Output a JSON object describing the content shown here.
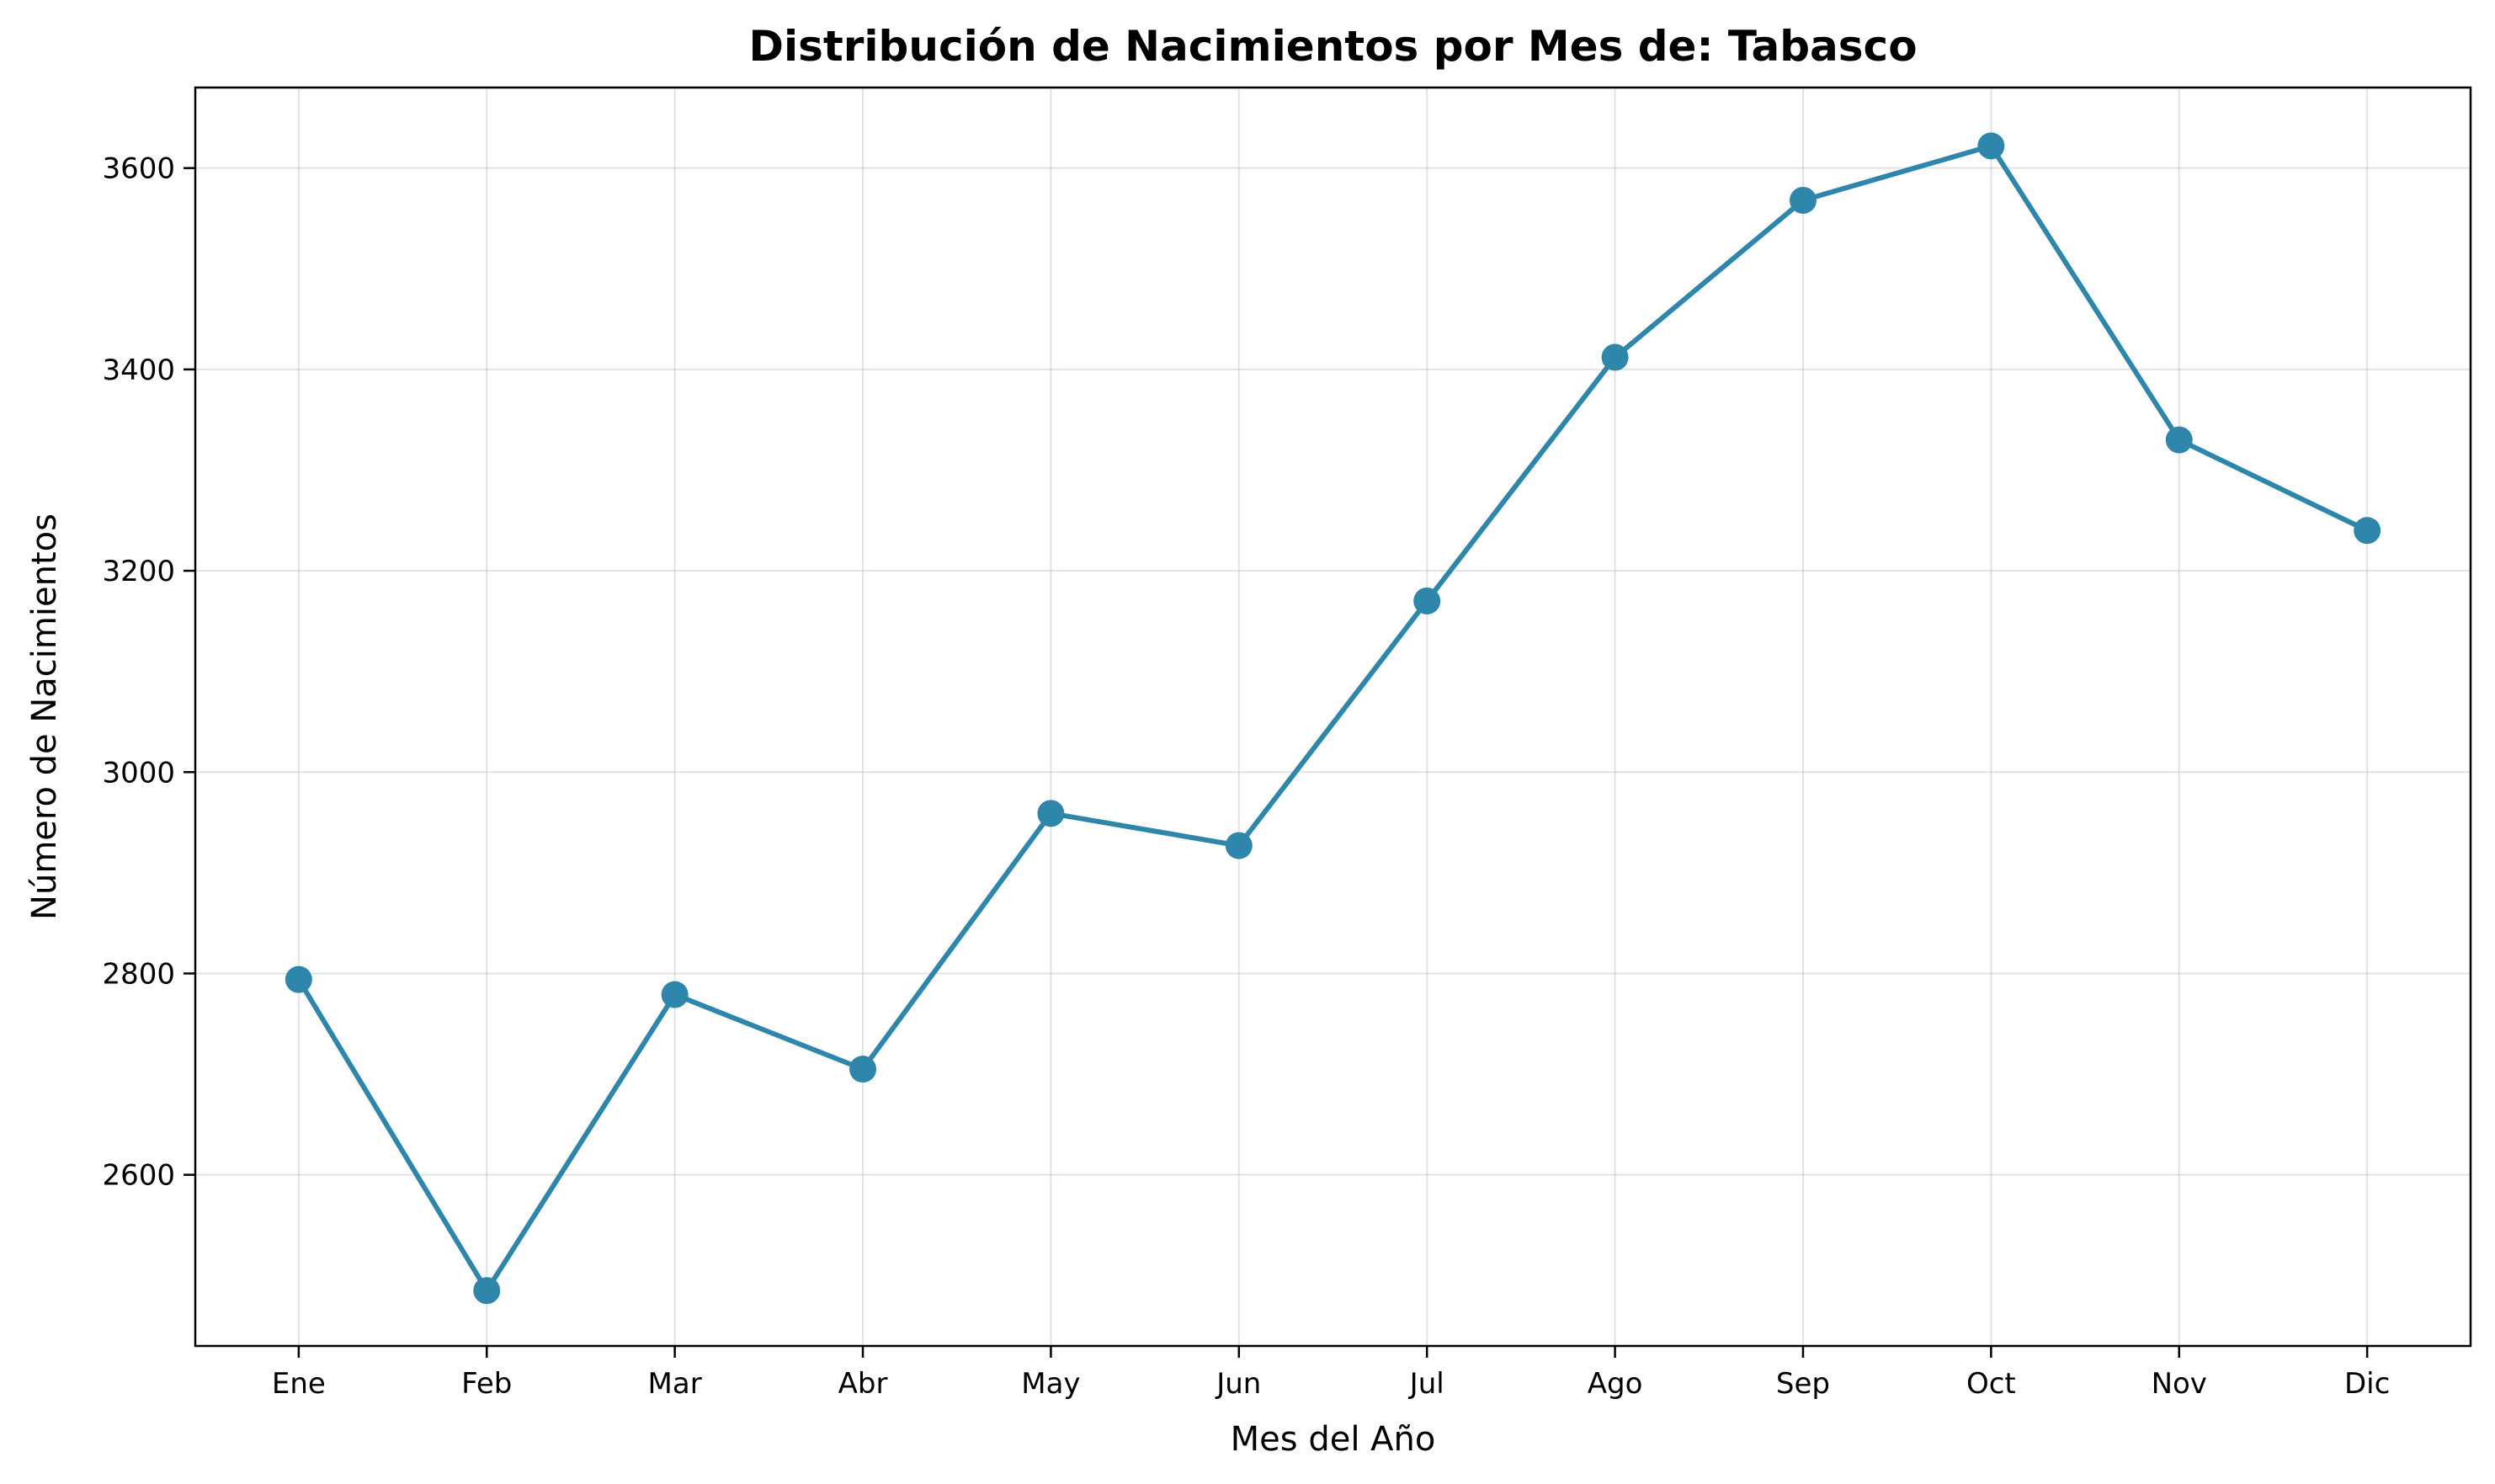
{
  "chart_data": {
    "type": "line",
    "title": "Distribución de Nacimientos por Mes de: Tabasco",
    "xlabel": "Mes del Año",
    "ylabel": "Número de Nacimientos",
    "categories": [
      "Ene",
      "Feb",
      "Mar",
      "Abr",
      "May",
      "Jun",
      "Jul",
      "Ago",
      "Sep",
      "Oct",
      "Nov",
      "Dic"
    ],
    "series": [
      {
        "values": [
          2794,
          2485,
          2779,
          2705,
          2959,
          2927,
          3170,
          3412,
          3568,
          3622,
          3330,
          3240
        ],
        "color": "#2e86ab"
      }
    ],
    "ylim": [
      2430,
      3680
    ],
    "yticks": [
      2600,
      2800,
      3000,
      3200,
      3400,
      3600
    ],
    "grid": true,
    "markers": true
  }
}
